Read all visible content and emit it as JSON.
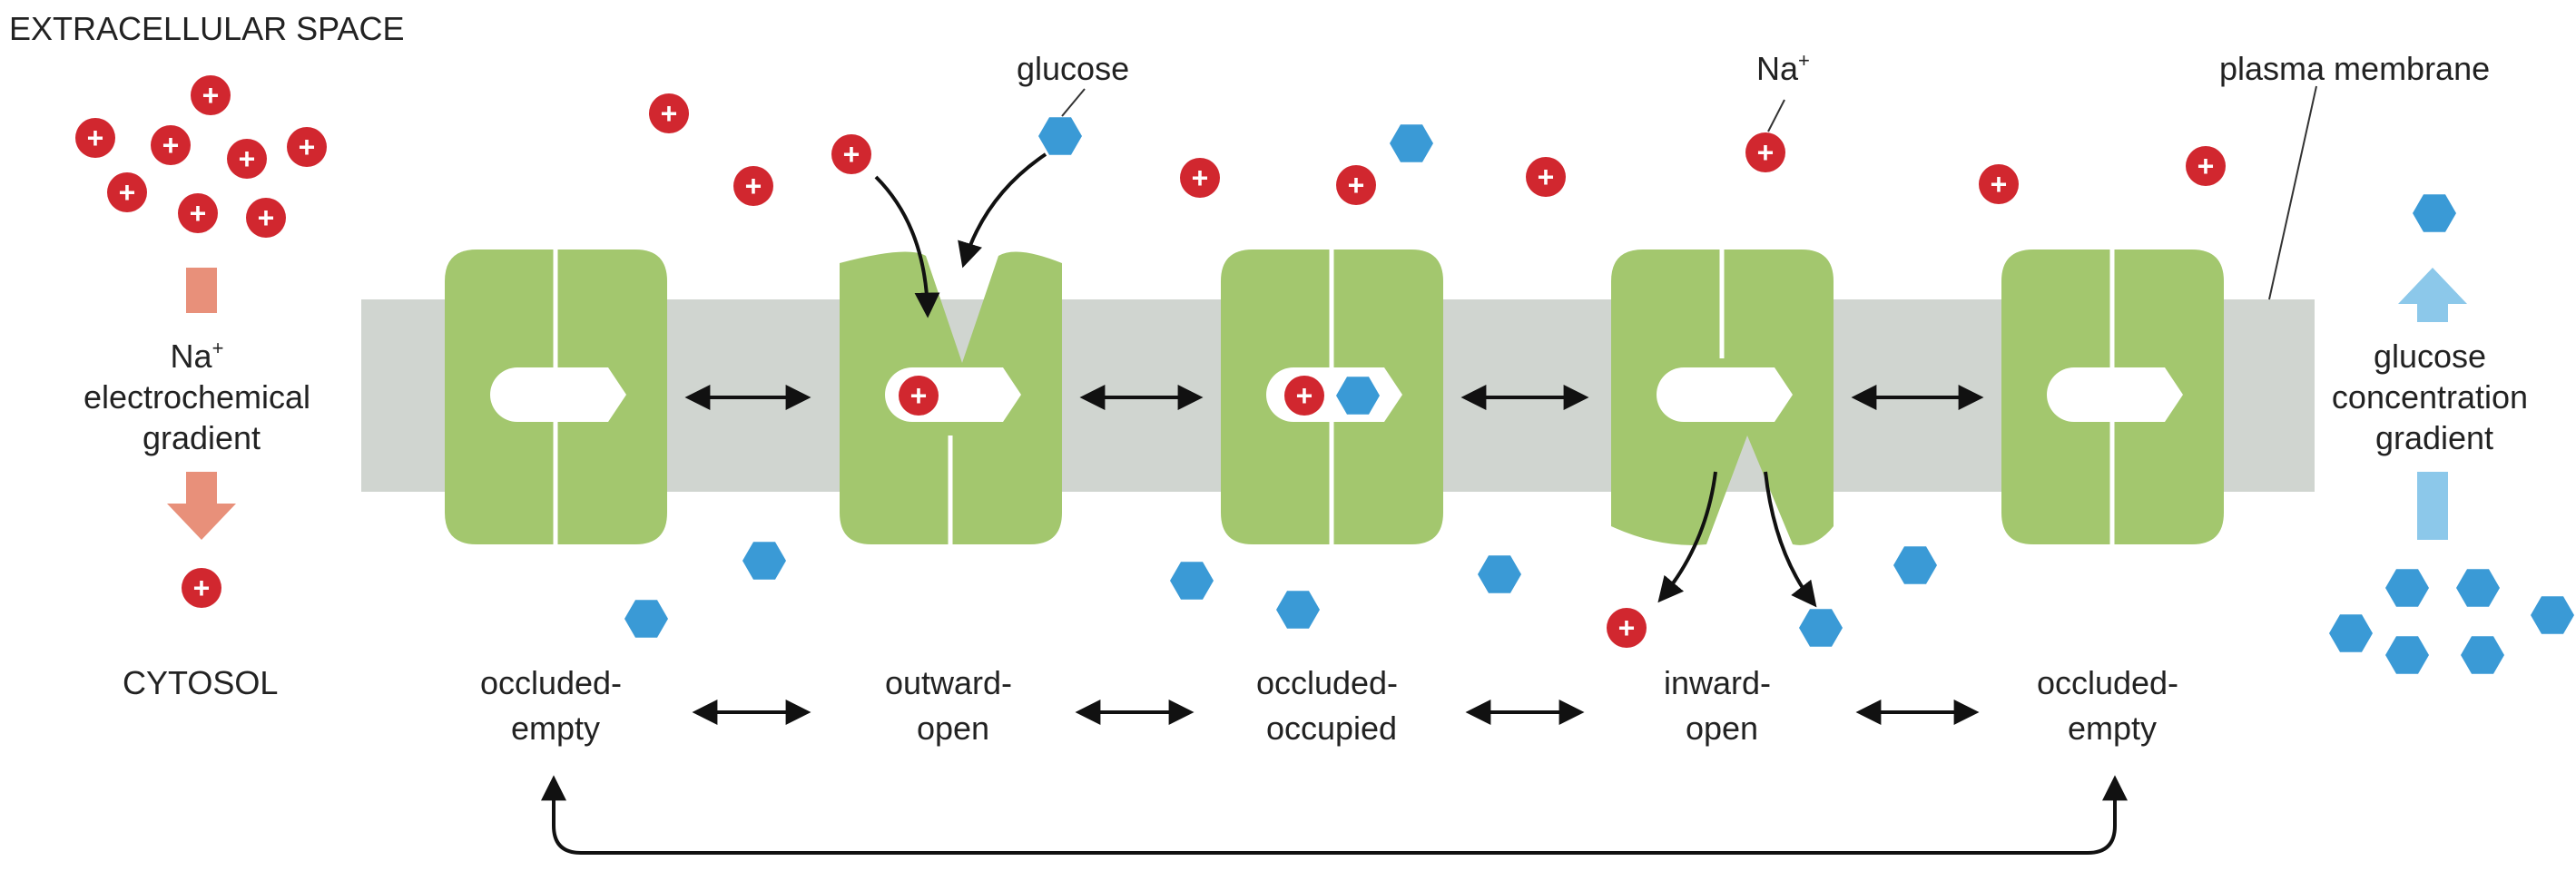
{
  "labels": {
    "extracellular": "EXTRACELLULAR SPACE",
    "cytosol": "CYTOSOL",
    "plasma_membrane": "plasma membrane",
    "glucose": "glucose",
    "na": "Na",
    "na_sup": "+",
    "plus": "+",
    "na_gradient": [
      "Na",
      "electrochemical",
      "gradient"
    ],
    "na_gradient_sup": "+",
    "glucose_gradient": [
      "glucose",
      "concentration",
      "gradient"
    ]
  },
  "states": [
    {
      "line1": "occluded-",
      "line2": "empty"
    },
    {
      "line1": "outward-",
      "line2": "open"
    },
    {
      "line1": "occluded-",
      "line2": "occupied"
    },
    {
      "line1": "inward-",
      "line2": "open"
    },
    {
      "line1": "occluded-",
      "line2": "empty"
    }
  ],
  "colors": {
    "transporter": "#a3c76e",
    "membrane": "#d0d5d0",
    "sodium": "#d1272f",
    "glucose": "#3a9ad6",
    "na_gradient_arrow": "#e8907a",
    "glucose_gradient_arrow": "#8cc8ea",
    "arrow": "#111111"
  },
  "icons": {
    "sodium": "red-circle-plus-icon",
    "glucose": "blue-hexagon-icon"
  }
}
